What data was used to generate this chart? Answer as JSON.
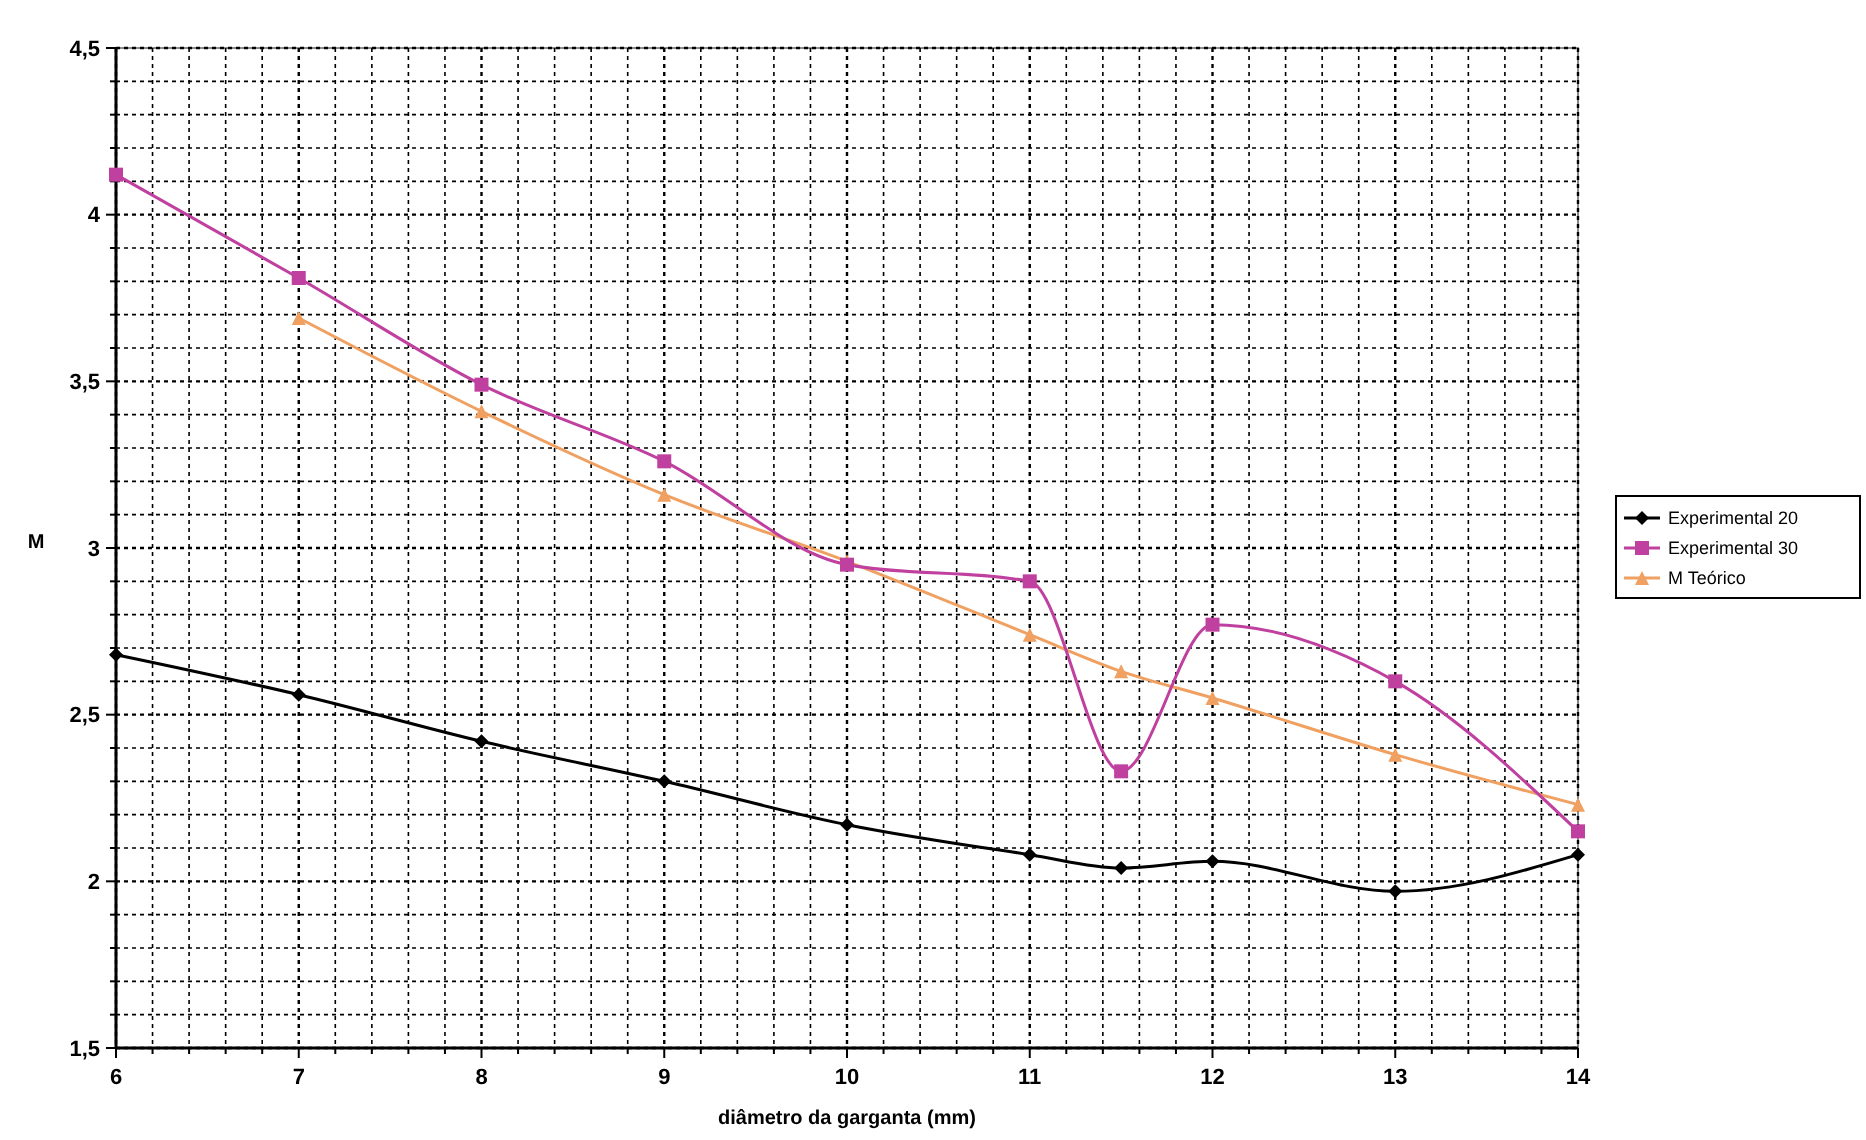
{
  "chart_data": {
    "type": "line",
    "xlabel": "diâmetro da garganta (mm)",
    "ylabel": "M",
    "x": [
      6,
      7,
      8,
      9,
      10,
      11,
      11.5,
      12,
      13,
      14
    ],
    "series": [
      {
        "name": "Experimental 20",
        "color": "#000000",
        "marker": "diamond",
        "values": [
          2.68,
          2.56,
          2.42,
          2.3,
          2.17,
          2.08,
          2.04,
          2.06,
          1.97,
          2.08
        ]
      },
      {
        "name": "Experimental 30",
        "color": "#c040a0",
        "marker": "square",
        "values": [
          4.12,
          3.81,
          3.49,
          3.26,
          2.95,
          2.9,
          2.33,
          2.77,
          2.6,
          2.15
        ]
      },
      {
        "name": "M Teórico",
        "color": "#f0a060",
        "marker": "triangle",
        "values": [
          null,
          3.69,
          3.41,
          3.16,
          2.96,
          2.74,
          2.63,
          2.55,
          2.38,
          2.23
        ]
      }
    ],
    "xlim": [
      6,
      14
    ],
    "ylim": [
      1.5,
      4.5
    ],
    "xticks": [
      6,
      {
        "value": 6.2,
        "label": null
      },
      {
        "value": 6.4,
        "label": null
      },
      {
        "value": 6.6,
        "label": null
      },
      {
        "value": 6.8,
        "label": null
      },
      7,
      {
        "value": 7.2,
        "label": null
      },
      {
        "value": 7.4,
        "label": null
      },
      {
        "value": 7.6,
        "label": null
      },
      {
        "value": 7.8,
        "label": null
      },
      8,
      {
        "value": 8.2,
        "label": null
      },
      {
        "value": 8.4,
        "label": null
      },
      {
        "value": 8.6,
        "label": null
      },
      {
        "value": 8.8,
        "label": null
      },
      9,
      {
        "value": 9.2,
        "label": null
      },
      {
        "value": 9.4,
        "label": null
      },
      {
        "value": 9.6,
        "label": null
      },
      {
        "value": 9.8,
        "label": null
      },
      10,
      {
        "value": 10.2,
        "label": null
      },
      {
        "value": 10.4,
        "label": null
      },
      {
        "value": 10.6,
        "label": null
      },
      {
        "value": 10.8,
        "label": null
      },
      11,
      {
        "value": 11.2,
        "label": null
      },
      {
        "value": 11.4,
        "label": null
      },
      {
        "value": 11.6,
        "label": null
      },
      {
        "value": 11.8,
        "label": null
      },
      12,
      {
        "value": 12.2,
        "label": null
      },
      {
        "value": 12.4,
        "label": null
      },
      {
        "value": 12.6,
        "label": null
      },
      {
        "value": 12.8,
        "label": null
      },
      13,
      {
        "value": 13.2,
        "label": null
      },
      {
        "value": 13.4,
        "label": null
      },
      {
        "value": 13.6,
        "label": null
      },
      {
        "value": 13.8,
        "label": null
      },
      14
    ],
    "yticks": [
      {
        "value": 1.5,
        "label": "1,5"
      },
      {
        "value": 1.6,
        "label": null
      },
      {
        "value": 1.7,
        "label": null
      },
      {
        "value": 1.8,
        "label": null
      },
      {
        "value": 1.9,
        "label": null
      },
      2,
      {
        "value": 2.1,
        "label": null
      },
      {
        "value": 2.2,
        "label": null
      },
      {
        "value": 2.3,
        "label": null
      },
      {
        "value": 2.4,
        "label": null
      },
      {
        "value": 2.5,
        "label": "2,5"
      },
      {
        "value": 2.6,
        "label": null
      },
      {
        "value": 2.7,
        "label": null
      },
      {
        "value": 2.8,
        "label": null
      },
      {
        "value": 2.9,
        "label": null
      },
      3,
      {
        "value": 3.1,
        "label": null
      },
      {
        "value": 3.2,
        "label": null
      },
      {
        "value": 3.3,
        "label": null
      },
      {
        "value": 3.4,
        "label": null
      },
      {
        "value": 3.5,
        "label": "3,5"
      },
      {
        "value": 3.6,
        "label": null
      },
      {
        "value": 3.7,
        "label": null
      },
      {
        "value": 3.8,
        "label": null
      },
      {
        "value": 3.9,
        "label": null
      },
      4,
      {
        "value": 4.1,
        "label": null
      },
      {
        "value": 4.2,
        "label": null
      },
      {
        "value": 4.3,
        "label": null
      },
      {
        "value": 4.4,
        "label": null
      },
      {
        "value": 4.5,
        "label": "4,5"
      }
    ],
    "grid": true,
    "legend": "right"
  }
}
